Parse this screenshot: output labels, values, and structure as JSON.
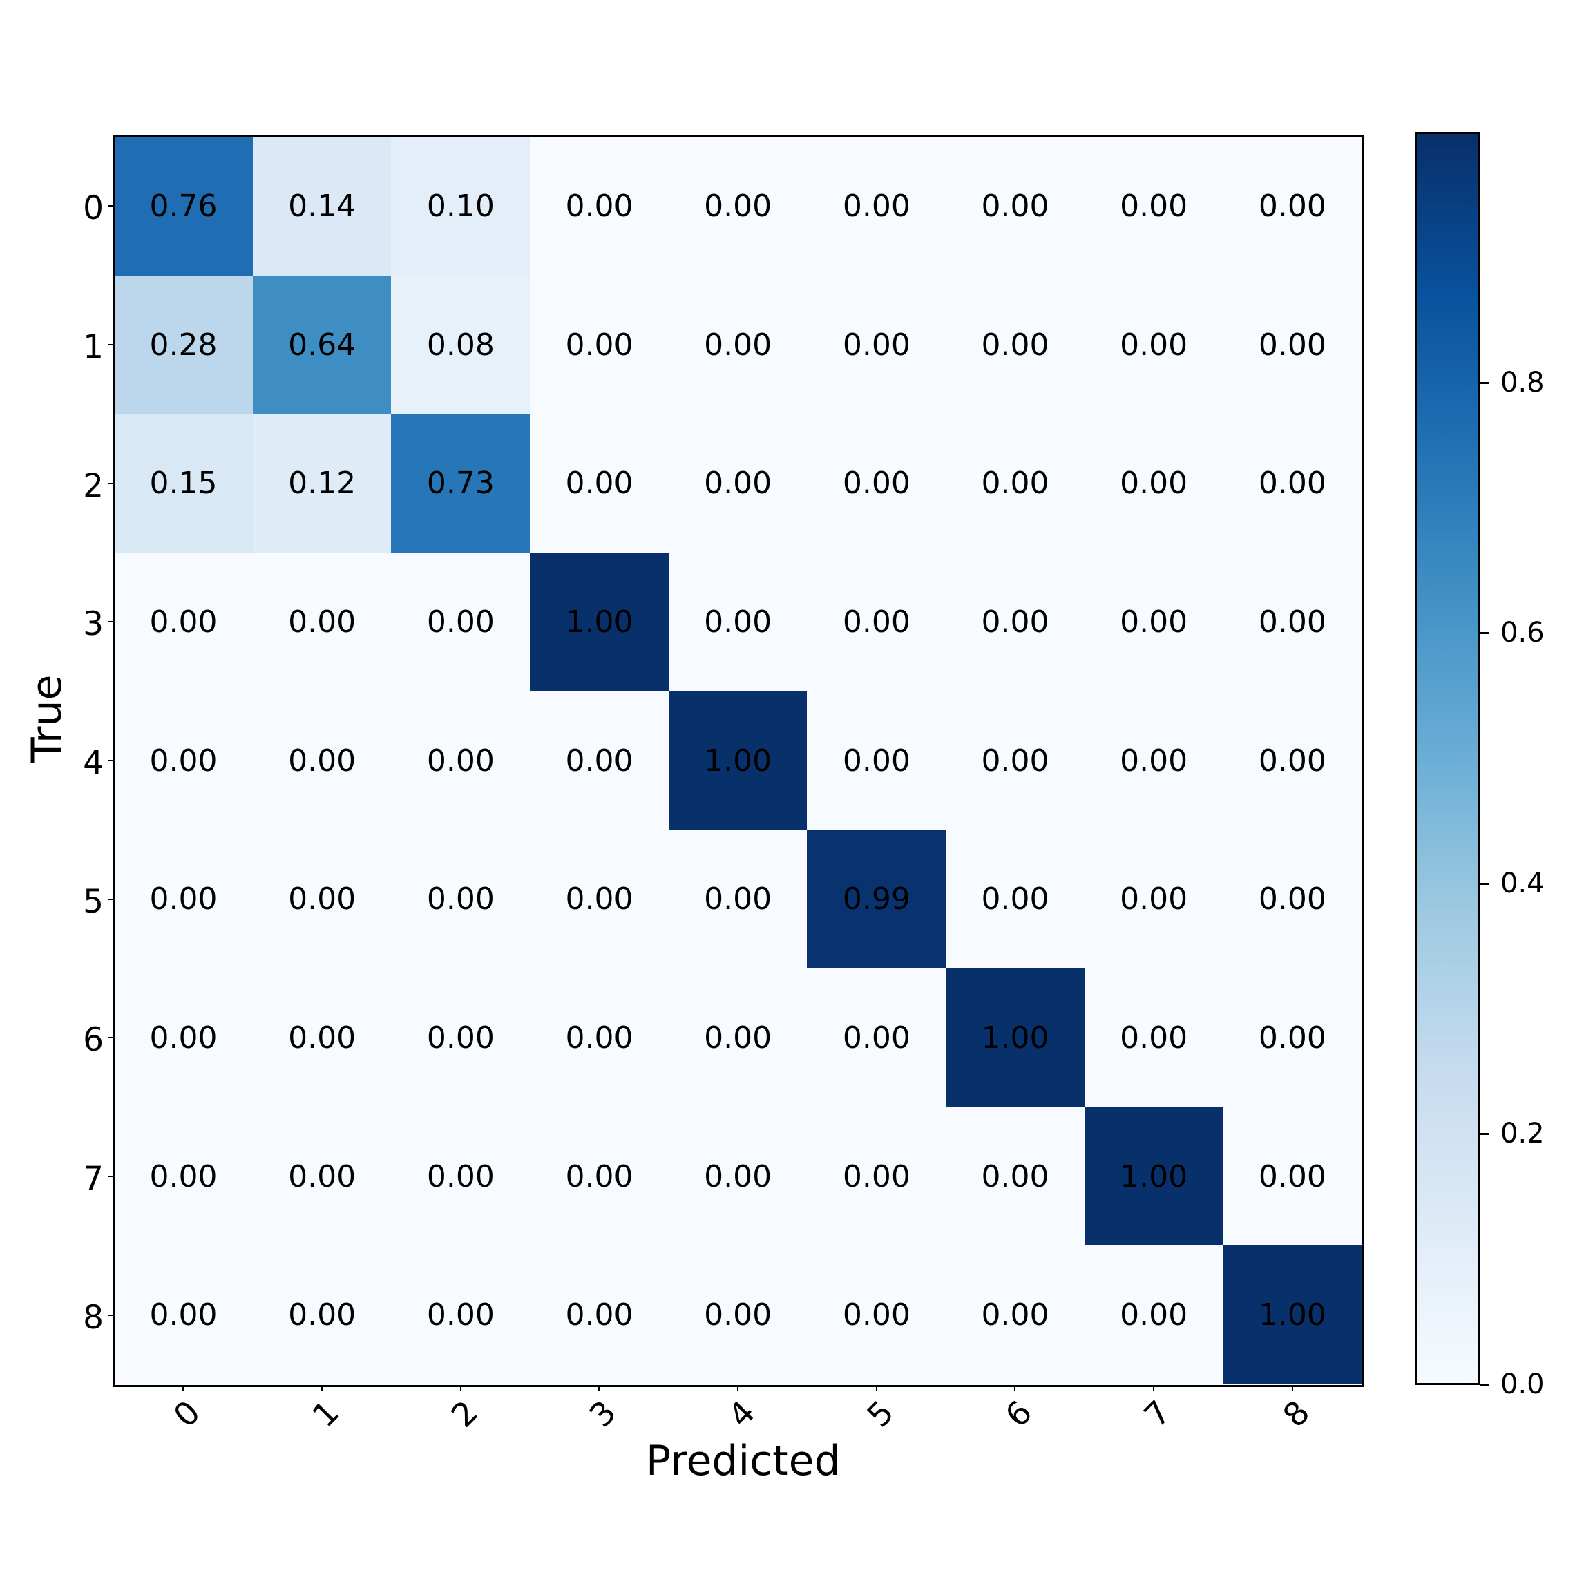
{
  "chart_data": {
    "type": "heatmap",
    "title": "",
    "xlabel": "Predicted",
    "ylabel": "True",
    "x_categories": [
      "0",
      "1",
      "2",
      "3",
      "4",
      "5",
      "6",
      "7",
      "8"
    ],
    "y_categories": [
      "0",
      "1",
      "2",
      "3",
      "4",
      "5",
      "6",
      "7",
      "8"
    ],
    "values": [
      [
        0.76,
        0.14,
        0.1,
        0.0,
        0.0,
        0.0,
        0.0,
        0.0,
        0.0
      ],
      [
        0.28,
        0.64,
        0.08,
        0.0,
        0.0,
        0.0,
        0.0,
        0.0,
        0.0
      ],
      [
        0.15,
        0.12,
        0.73,
        0.0,
        0.0,
        0.0,
        0.0,
        0.0,
        0.0
      ],
      [
        0.0,
        0.0,
        0.0,
        1.0,
        0.0,
        0.0,
        0.0,
        0.0,
        0.0
      ],
      [
        0.0,
        0.0,
        0.0,
        0.0,
        1.0,
        0.0,
        0.0,
        0.0,
        0.0
      ],
      [
        0.0,
        0.0,
        0.0,
        0.0,
        0.0,
        0.99,
        0.0,
        0.0,
        0.0
      ],
      [
        0.0,
        0.0,
        0.0,
        0.0,
        0.0,
        0.0,
        1.0,
        0.0,
        0.0
      ],
      [
        0.0,
        0.0,
        0.0,
        0.0,
        0.0,
        0.0,
        0.0,
        1.0,
        0.0
      ],
      [
        0.0,
        0.0,
        0.0,
        0.0,
        0.0,
        0.0,
        0.0,
        0.0,
        1.0
      ]
    ],
    "value_format": "0.00",
    "colormap": "Blues",
    "colorbar": {
      "ticks": [
        0.0,
        0.2,
        0.4,
        0.6,
        0.8
      ],
      "tick_labels": [
        "0.0",
        "0.2",
        "0.4",
        "0.6",
        "0.8"
      ],
      "range": [
        0.0,
        1.0
      ]
    },
    "xtick_rotation": 45
  },
  "colors": {
    "low": "#f7fbff",
    "high": "#08306b",
    "text": "#000000"
  }
}
